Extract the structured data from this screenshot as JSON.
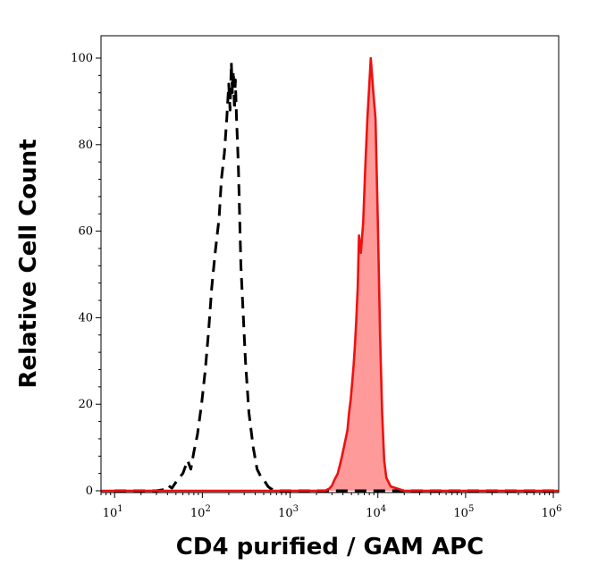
{
  "chart_data": {
    "type": "area",
    "title": "",
    "xlabel": "CD4 purified / GAM APC",
    "ylabel": "Relative Cell Count",
    "x_scale": "log",
    "xlim": [
      7,
      1150000
    ],
    "ylim": [
      0,
      100
    ],
    "x_ticks": [
      {
        "base": "10",
        "exp": "1",
        "value": 10
      },
      {
        "base": "10",
        "exp": "2",
        "value": 100
      },
      {
        "base": "10",
        "exp": "3",
        "value": 1000
      },
      {
        "base": "10",
        "exp": "4",
        "value": 10000
      },
      {
        "base": "10",
        "exp": "5",
        "value": 100000
      },
      {
        "base": "10",
        "exp": "6",
        "value": 1000000
      }
    ],
    "y_ticks": [
      "0",
      "20",
      "40",
      "60",
      "80",
      "100"
    ],
    "grid": false,
    "series": [
      {
        "style": "dashed",
        "color": "#000000",
        "filled": false,
        "x": [
          10,
          30,
          38,
          41,
          45,
          52,
          60,
          68,
          74,
          80,
          88,
          98,
          108,
          118,
          128,
          140,
          155,
          165,
          178,
          190,
          200,
          207,
          214,
          220,
          226,
          232,
          238,
          245,
          252,
          258,
          265,
          275,
          290,
          310,
          340,
          380,
          420,
          470,
          520,
          560,
          600,
          700,
          800,
          1200000
        ],
        "y": [
          0,
          0,
          0.3,
          1.2,
          0.6,
          2.5,
          4,
          7,
          5,
          9,
          13,
          20,
          28,
          37,
          47,
          55,
          63,
          72,
          78,
          86,
          94,
          88,
          99,
          92,
          97,
          88,
          95,
          86,
          80,
          74,
          65,
          52,
          42,
          30,
          18,
          10,
          5,
          3,
          2,
          1,
          0.5,
          0,
          0,
          0
        ]
      },
      {
        "style": "solid",
        "color": "#ee1111",
        "fill": "#ff9a9a",
        "filled": true,
        "x": [
          7,
          2500,
          2800,
          3000,
          3200,
          3500,
          3700,
          3900,
          4200,
          4500,
          4700,
          4900,
          5100,
          5300,
          5500,
          5700,
          5900,
          6100,
          6400,
          6800,
          7200,
          7600,
          8000,
          8300,
          8800,
          9400,
          10000,
          10600,
          11200,
          11800,
          12500,
          14000,
          20000,
          1150000
        ],
        "y": [
          0,
          0,
          0.5,
          1.2,
          2.5,
          4,
          6,
          8,
          11,
          14,
          18,
          21,
          25,
          29,
          34,
          40,
          47,
          59,
          55,
          62,
          75,
          86,
          94,
          100,
          93,
          86,
          62,
          36,
          18,
          7,
          3,
          1,
          0,
          0
        ]
      }
    ]
  }
}
